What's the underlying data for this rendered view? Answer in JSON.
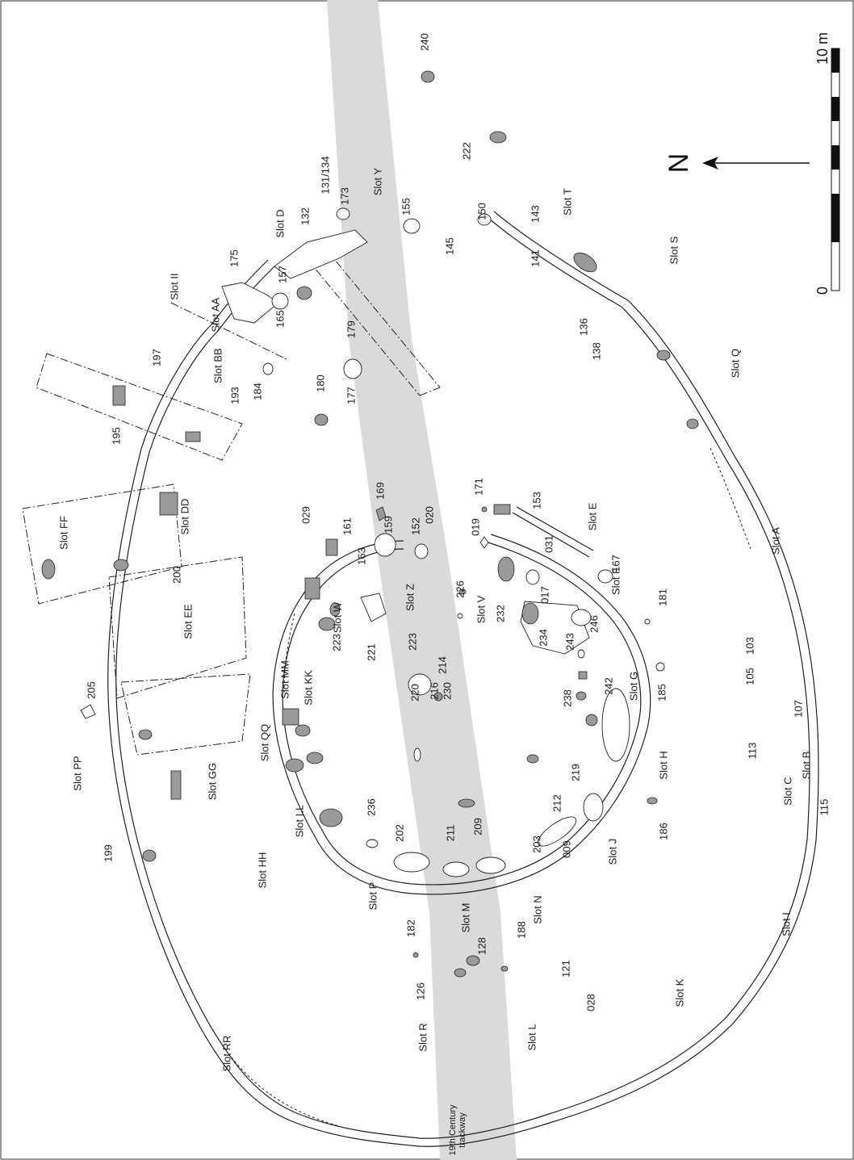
{
  "colors": {
    "trackway": "#dadada",
    "stone": "#9a9a9a",
    "ink": "#222222"
  },
  "north_label": "N",
  "scale": {
    "start": "0",
    "end": "10 m"
  },
  "trackway_label": "19th Century\ntrackway",
  "labels": [
    "Slot RR",
    "Slot R",
    "Slot L",
    "028",
    "121",
    "126",
    "Slot K",
    "Slot I",
    "115",
    "Slot C",
    "113",
    "Slot B",
    "107",
    "105",
    "103",
    "Slot A",
    "Slot Q",
    "Slot S",
    "136",
    "138",
    "Slot T",
    "141",
    "143",
    "145",
    "150",
    "222",
    "240",
    "155",
    "Slot Y",
    "173",
    "131/134",
    "132",
    "Slot D",
    "175",
    "157",
    "165",
    "Slot AA",
    "Slot II",
    "197",
    "Slot BB",
    "193",
    "195",
    "184",
    "180",
    "179",
    "177",
    "Slot DD",
    "Slot FF",
    "200",
    "Slot EE",
    "205",
    "Slot PP",
    "Slot GG",
    "199",
    "Slot HH",
    "029",
    "161",
    "169",
    "159",
    "163",
    "152",
    "020",
    "Slot Z",
    "Slot W",
    "223",
    "221",
    "223",
    "Slot KK",
    "Slot MM",
    "Slot QQ",
    "Slot LL",
    "236",
    "202",
    "211",
    "209",
    "Slot P",
    "Slot M",
    "128",
    "182",
    "188",
    "Slot N",
    "203",
    "009",
    "212",
    "Slot J",
    "219",
    "Slot H",
    "238",
    "242",
    "243",
    "185",
    "186",
    "Slot G",
    "234",
    "246",
    "Slot F",
    "181",
    "232",
    "017",
    "Slot V",
    "019",
    "171",
    "153",
    "031",
    "Slot E",
    "167",
    "226",
    "214",
    "230",
    "216",
    "220"
  ]
}
